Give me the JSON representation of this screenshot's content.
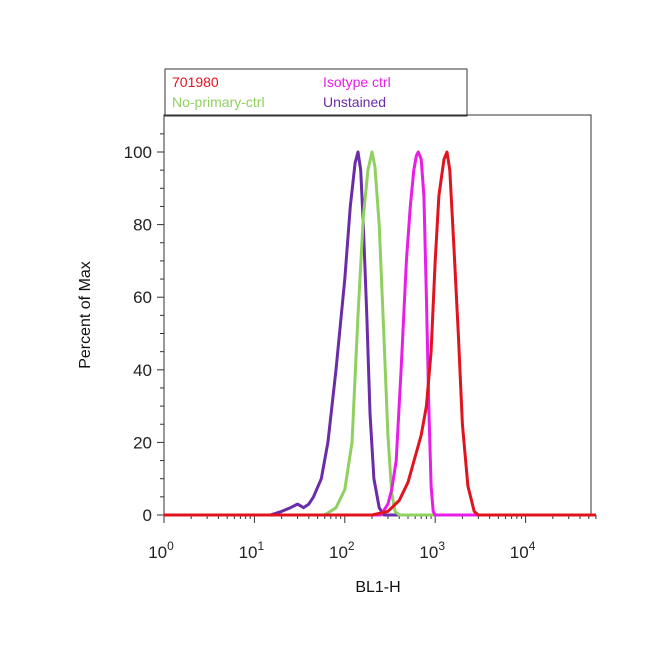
{
  "chart_data": {
    "type": "line",
    "xlabel": "BL1-H",
    "ylabel": "Percent of Max",
    "x_scale": "log",
    "xlim": [
      1,
      60000
    ],
    "ylim": [
      0,
      110
    ],
    "x_ticks": [
      {
        "value": 1,
        "base": "10",
        "exp": "0"
      },
      {
        "value": 10,
        "base": "10",
        "exp": "1"
      },
      {
        "value": 100,
        "base": "10",
        "exp": "2"
      },
      {
        "value": 1000,
        "base": "10",
        "exp": "3"
      },
      {
        "value": 10000,
        "base": "10",
        "exp": "4"
      }
    ],
    "y_ticks": [
      "0",
      "20",
      "40",
      "60",
      "80",
      "100"
    ],
    "grid": false,
    "legend_position": "top-left",
    "series": [
      {
        "name": "701980",
        "color": "#e0141e",
        "points": [
          [
            1,
            0
          ],
          [
            200,
            0
          ],
          [
            300,
            1
          ],
          [
            400,
            4
          ],
          [
            500,
            9
          ],
          [
            600,
            16
          ],
          [
            700,
            22
          ],
          [
            800,
            30
          ],
          [
            900,
            45
          ],
          [
            1000,
            70
          ],
          [
            1100,
            88
          ],
          [
            1250,
            98
          ],
          [
            1350,
            100
          ],
          [
            1450,
            95
          ],
          [
            1600,
            75
          ],
          [
            1800,
            50
          ],
          [
            2000,
            25
          ],
          [
            2300,
            8
          ],
          [
            2700,
            1
          ],
          [
            3000,
            0
          ],
          [
            60000,
            0
          ]
        ]
      },
      {
        "name": "Isotype ctrl",
        "color": "#e81ee8",
        "points": [
          [
            1,
            0
          ],
          [
            250,
            0
          ],
          [
            300,
            3
          ],
          [
            330,
            7
          ],
          [
            370,
            15
          ],
          [
            420,
            40
          ],
          [
            480,
            70
          ],
          [
            530,
            85
          ],
          [
            580,
            95
          ],
          [
            620,
            99
          ],
          [
            650,
            100
          ],
          [
            700,
            98
          ],
          [
            750,
            88
          ],
          [
            800,
            60
          ],
          [
            850,
            30
          ],
          [
            900,
            8
          ],
          [
            950,
            1
          ],
          [
            1000,
            0
          ],
          [
            60000,
            0
          ]
        ]
      },
      {
        "name": "No-primary-ctrl",
        "color": "#90d060",
        "points": [
          [
            1,
            0
          ],
          [
            60,
            0
          ],
          [
            80,
            2
          ],
          [
            100,
            7
          ],
          [
            120,
            20
          ],
          [
            140,
            55
          ],
          [
            160,
            82
          ],
          [
            180,
            95
          ],
          [
            200,
            100
          ],
          [
            215,
            96
          ],
          [
            240,
            80
          ],
          [
            270,
            50
          ],
          [
            300,
            22
          ],
          [
            330,
            6
          ],
          [
            360,
            1
          ],
          [
            400,
            0
          ],
          [
            60000,
            0
          ]
        ]
      },
      {
        "name": "Unstained",
        "color": "#6a2ca8",
        "points": [
          [
            1,
            0
          ],
          [
            15,
            0
          ],
          [
            20,
            1
          ],
          [
            25,
            2
          ],
          [
            30,
            3
          ],
          [
            35,
            2
          ],
          [
            40,
            3
          ],
          [
            45,
            5
          ],
          [
            55,
            10
          ],
          [
            65,
            20
          ],
          [
            80,
            40
          ],
          [
            100,
            65
          ],
          [
            115,
            85
          ],
          [
            130,
            97
          ],
          [
            140,
            100
          ],
          [
            150,
            95
          ],
          [
            160,
            80
          ],
          [
            175,
            55
          ],
          [
            190,
            28
          ],
          [
            210,
            10
          ],
          [
            240,
            2
          ],
          [
            270,
            0
          ],
          [
            60000,
            0
          ]
        ]
      }
    ]
  }
}
